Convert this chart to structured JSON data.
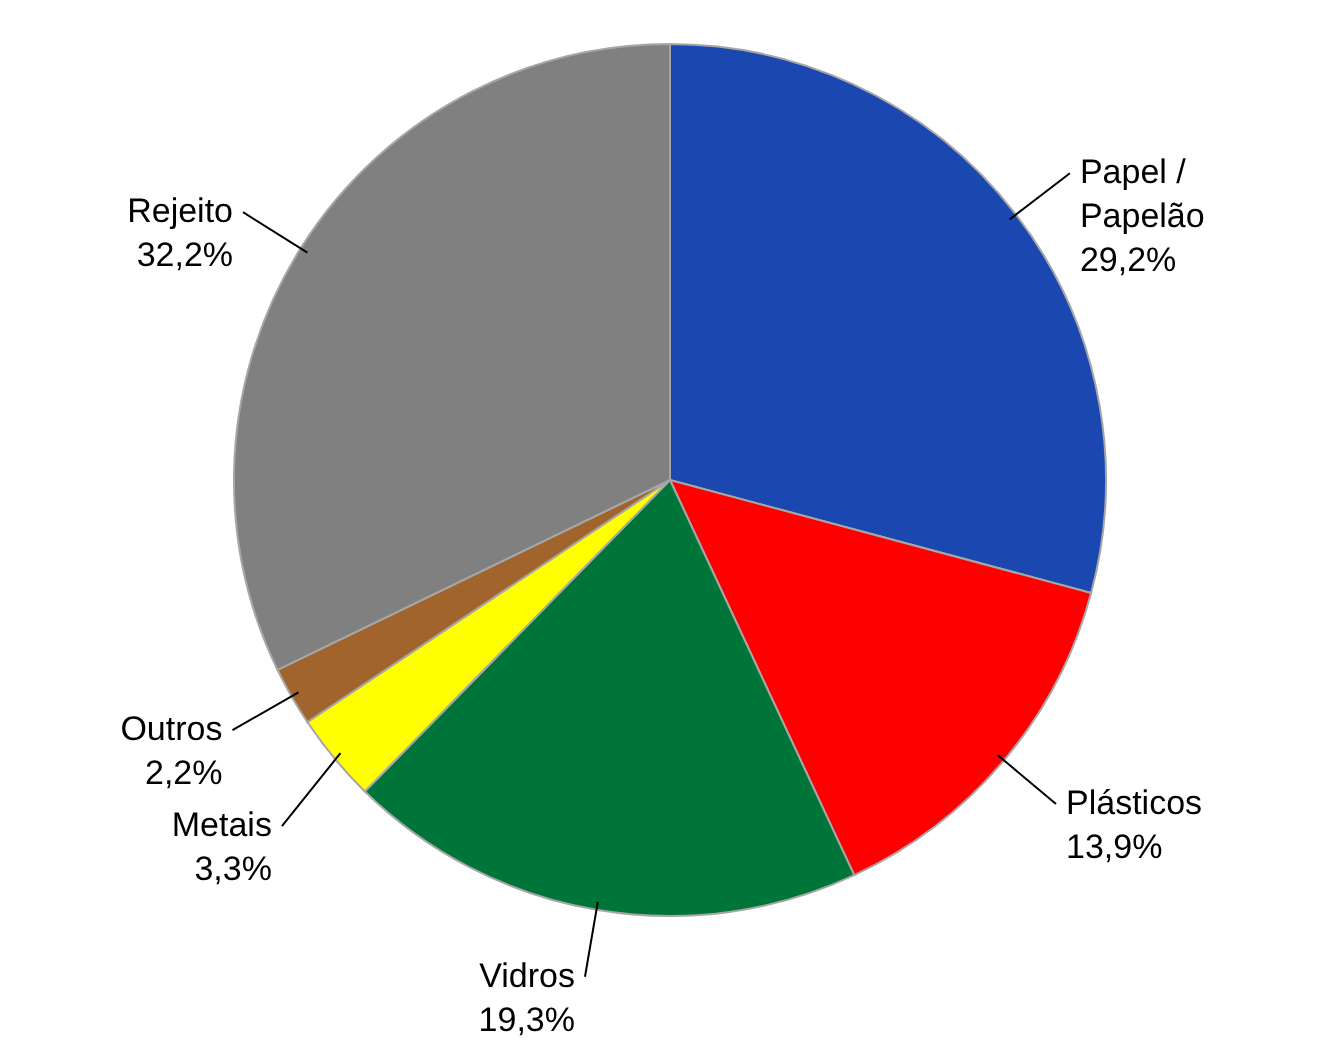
{
  "chart_data": {
    "type": "pie",
    "categories": [
      "Papel /\nPapelão",
      "Plásticos",
      "Vidros",
      "Metais",
      "Outros",
      "Rejeito"
    ],
    "values": [
      29.2,
      13.9,
      19.3,
      3.3,
      2.2,
      32.2
    ],
    "value_labels": [
      "29,2%",
      "13,9%",
      "19,3%",
      "3,3%",
      "2,2%",
      "32,2%"
    ],
    "colors": [
      "#1a47b0",
      "#ff0000",
      "#00753a",
      "#ffff00",
      "#a0642c",
      "#808080"
    ]
  }
}
